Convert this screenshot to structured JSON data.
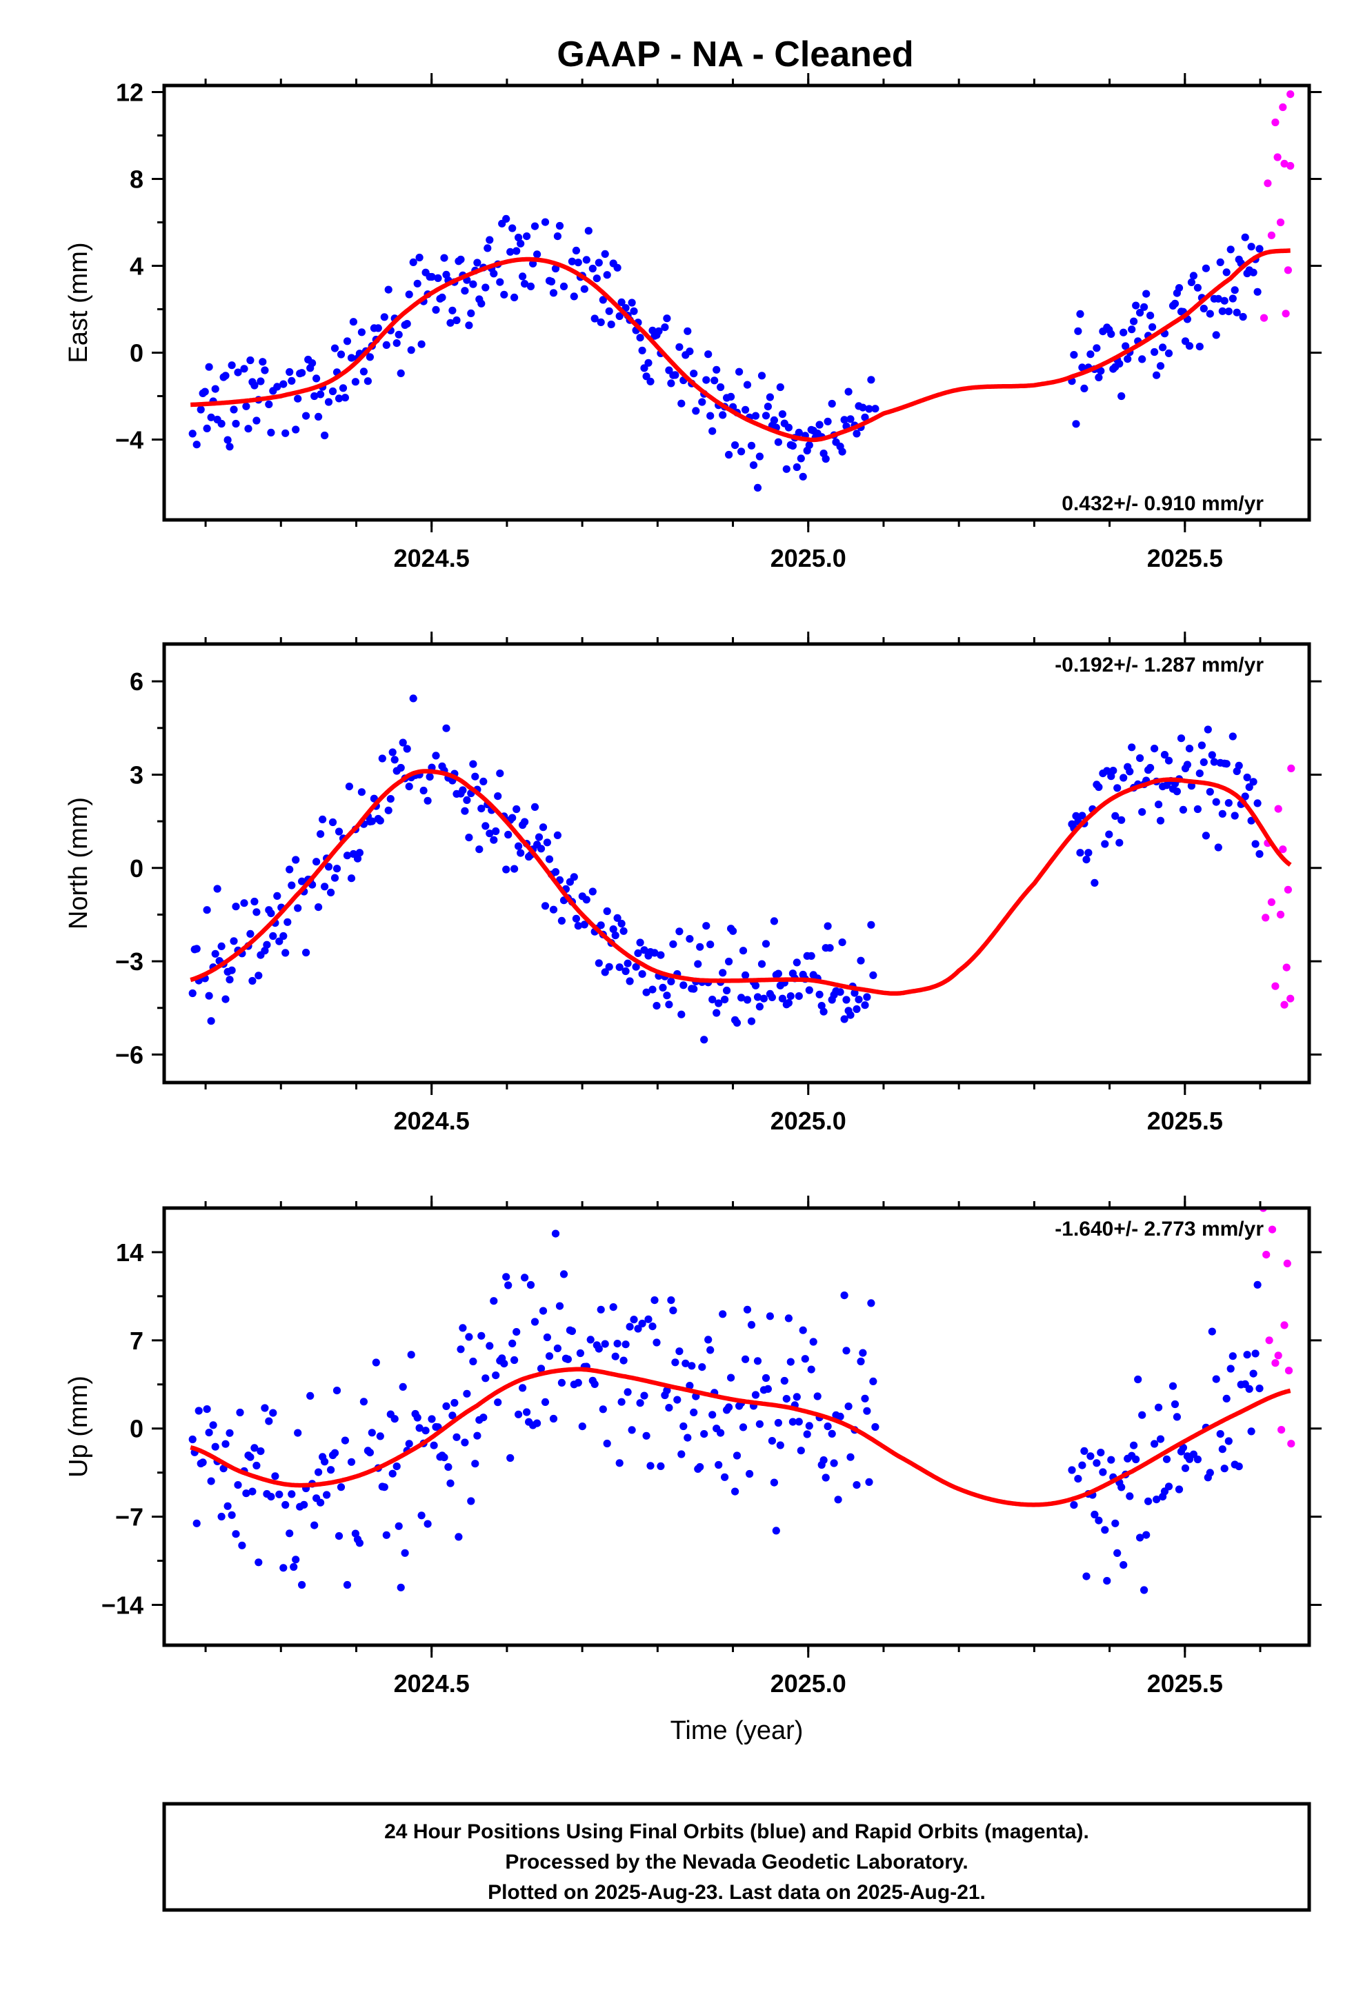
{
  "title": "GAAP  - NA - Cleaned",
  "footer": {
    "lines": [
      "24 Hour Positions Using Final Orbits (blue) and Rapid Orbits (magenta).",
      "Processed by the Nevada Geodetic Laboratory.",
      "Plotted on 2025-Aug-23. Last data on 2025-Aug-21."
    ]
  },
  "colors": {
    "final": "#0000ff",
    "rapid": "#ff00ff",
    "fit": "#ff0000",
    "frame": "#000000"
  },
  "chart_data": [
    {
      "type": "scatter",
      "name": "east",
      "ylabel": "East (mm)",
      "xlabel": "",
      "xlim": [
        2024.145,
        2025.665
      ],
      "ylim": [
        -7.7,
        12.3
      ],
      "xticks": [
        2024.5,
        2025.0,
        2025.5
      ],
      "xtick_labels": [
        "2024.5",
        "2025.0",
        "2025.5"
      ],
      "yticks": [
        -4,
        0,
        4,
        8,
        12
      ],
      "ytick_labels": [
        "−4",
        "0",
        "4",
        "8",
        "12"
      ],
      "rate_label": "0.432+/- 0.910 mm/yr",
      "rate_position": "bottom-right",
      "final_segments": [
        [
          2024.18,
          2025.09
        ],
        [
          2025.35,
          2025.6
        ]
      ],
      "rapid_range": [
        2025.6,
        2025.64
      ],
      "fit_knots": [
        [
          2024.18,
          -2.4
        ],
        [
          2024.3,
          -2.0
        ],
        [
          2024.38,
          -1.0
        ],
        [
          2024.47,
          2.0
        ],
        [
          2024.55,
          3.6
        ],
        [
          2024.63,
          4.3
        ],
        [
          2024.7,
          3.5
        ],
        [
          2024.78,
          1.0
        ],
        [
          2024.85,
          -1.5
        ],
        [
          2024.92,
          -3.1
        ],
        [
          2025.0,
          -4.0
        ],
        [
          2025.05,
          -3.6
        ],
        [
          2025.1,
          -2.8
        ],
        [
          2025.2,
          -1.7
        ],
        [
          2025.3,
          -1.5
        ],
        [
          2025.35,
          -1.1
        ],
        [
          2025.42,
          0.0
        ],
        [
          2025.5,
          1.7
        ],
        [
          2025.56,
          3.4
        ],
        [
          2025.6,
          4.5
        ],
        [
          2025.64,
          4.7
        ]
      ],
      "scatter_sd": 1.0,
      "final_points": [],
      "rapid_points": [
        [
          2025.605,
          1.6
        ],
        [
          2025.61,
          7.8
        ],
        [
          2025.615,
          5.4
        ],
        [
          2025.62,
          10.6
        ],
        [
          2025.623,
          9.0
        ],
        [
          2025.627,
          6.0
        ],
        [
          2025.63,
          11.3
        ],
        [
          2025.632,
          8.7
        ],
        [
          2025.634,
          1.8
        ],
        [
          2025.637,
          3.8
        ],
        [
          2025.64,
          11.9
        ],
        [
          2025.64,
          8.6
        ]
      ]
    },
    {
      "type": "scatter",
      "name": "north",
      "ylabel": "North (mm)",
      "xlabel": "",
      "xlim": [
        2024.145,
        2025.665
      ],
      "ylim": [
        -6.9,
        7.2
      ],
      "xticks": [
        2024.5,
        2025.0,
        2025.5
      ],
      "xtick_labels": [
        "2024.5",
        "2025.0",
        "2025.5"
      ],
      "yticks": [
        -6,
        -3,
        0,
        3,
        6
      ],
      "ytick_labels": [
        "−6",
        "−3",
        "0",
        "3",
        "6"
      ],
      "rate_label": "-0.192+/- 1.287 mm/yr",
      "rate_position": "top-right",
      "final_segments": [
        [
          2024.18,
          2025.09
        ],
        [
          2025.35,
          2025.6
        ]
      ],
      "rapid_range": [
        2025.6,
        2025.64
      ],
      "fit_knots": [
        [
          2024.18,
          -3.6
        ],
        [
          2024.25,
          -2.6
        ],
        [
          2024.32,
          -0.9
        ],
        [
          2024.4,
          1.3
        ],
        [
          2024.46,
          2.8
        ],
        [
          2024.5,
          3.1
        ],
        [
          2024.55,
          2.6
        ],
        [
          2024.62,
          0.9
        ],
        [
          2024.7,
          -1.5
        ],
        [
          2024.78,
          -3.1
        ],
        [
          2024.85,
          -3.6
        ],
        [
          2025.0,
          -3.6
        ],
        [
          2025.07,
          -3.9
        ],
        [
          2025.13,
          -4.0
        ],
        [
          2025.2,
          -3.3
        ],
        [
          2025.3,
          -0.5
        ],
        [
          2025.38,
          1.8
        ],
        [
          2025.45,
          2.7
        ],
        [
          2025.5,
          2.8
        ],
        [
          2025.57,
          2.3
        ],
        [
          2025.64,
          0.1
        ]
      ],
      "scatter_sd": 0.8,
      "final_points": [],
      "rapid_points": [
        [
          2025.607,
          -1.6
        ],
        [
          2025.61,
          0.8
        ],
        [
          2025.615,
          -1.1
        ],
        [
          2025.62,
          -3.8
        ],
        [
          2025.624,
          1.9
        ],
        [
          2025.627,
          -1.5
        ],
        [
          2025.63,
          0.6
        ],
        [
          2025.632,
          -4.4
        ],
        [
          2025.635,
          -3.2
        ],
        [
          2025.637,
          -0.7
        ],
        [
          2025.64,
          -4.2
        ],
        [
          2025.641,
          3.2
        ]
      ]
    },
    {
      "type": "scatter",
      "name": "up",
      "ylabel": "Up (mm)",
      "xlabel": "Time (year)",
      "xlim": [
        2024.145,
        2025.665
      ],
      "ylim": [
        -17.2,
        17.5
      ],
      "xticks": [
        2024.5,
        2025.0,
        2025.5
      ],
      "xtick_labels": [
        "2024.5",
        "2025.0",
        "2025.5"
      ],
      "yticks": [
        -14,
        -7,
        0,
        7,
        14
      ],
      "ytick_labels": [
        "−14",
        "−7",
        "0",
        "7",
        "14"
      ],
      "rate_label": "-1.640+/- 2.773 mm/yr",
      "rate_position": "top-right",
      "final_segments": [
        [
          2024.18,
          2025.09
        ],
        [
          2025.35,
          2025.6
        ]
      ],
      "rapid_range": [
        2025.6,
        2025.64
      ],
      "fit_knots": [
        [
          2024.18,
          -1.5
        ],
        [
          2024.25,
          -3.5
        ],
        [
          2024.32,
          -4.5
        ],
        [
          2024.4,
          -3.8
        ],
        [
          2024.48,
          -1.5
        ],
        [
          2024.56,
          1.8
        ],
        [
          2024.62,
          3.9
        ],
        [
          2024.69,
          4.7
        ],
        [
          2024.75,
          4.2
        ],
        [
          2024.82,
          3.3
        ],
        [
          2024.9,
          2.3
        ],
        [
          2024.98,
          1.6
        ],
        [
          2025.05,
          0.3
        ],
        [
          2025.12,
          -2.2
        ],
        [
          2025.2,
          -4.8
        ],
        [
          2025.28,
          -6.0
        ],
        [
          2025.35,
          -5.6
        ],
        [
          2025.43,
          -3.4
        ],
        [
          2025.5,
          -1.0
        ],
        [
          2025.57,
          1.2
        ],
        [
          2025.64,
          3.0
        ]
      ],
      "scatter_sd": 3.8,
      "final_points": [],
      "rapid_points": [
        [
          2025.604,
          17.5
        ],
        [
          2025.608,
          13.8
        ],
        [
          2025.612,
          7.0
        ],
        [
          2025.616,
          15.8
        ],
        [
          2025.62,
          5.2
        ],
        [
          2025.624,
          5.8
        ],
        [
          2025.628,
          -0.1
        ],
        [
          2025.632,
          8.2
        ],
        [
          2025.636,
          13.1
        ],
        [
          2025.638,
          4.6
        ],
        [
          2025.641,
          -1.2
        ]
      ]
    }
  ]
}
